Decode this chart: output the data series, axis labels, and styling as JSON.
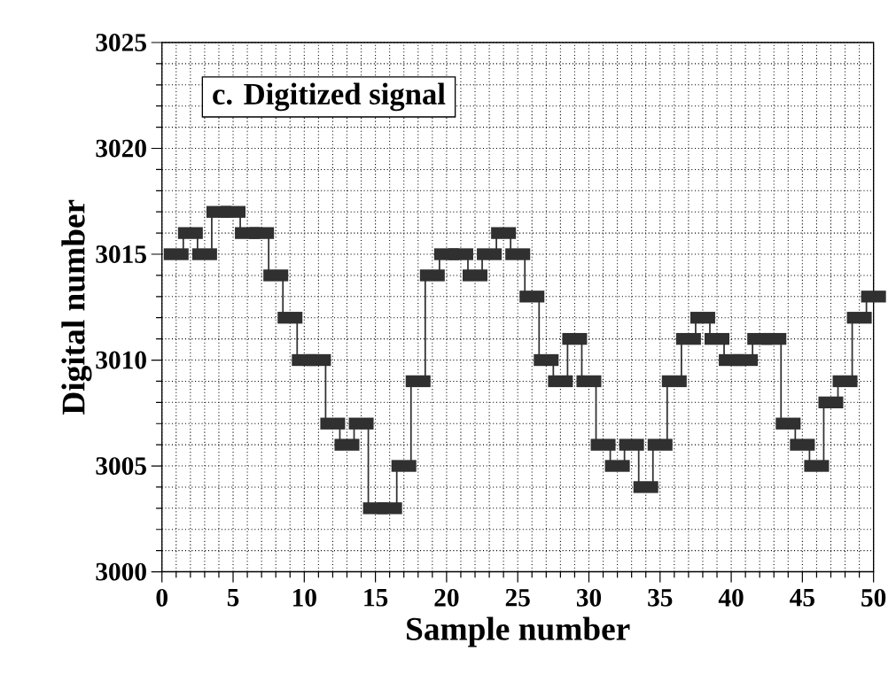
{
  "chart_data": {
    "type": "step",
    "title": "c. Digitized signal",
    "xlabel": "Sample number",
    "ylabel": "Digital number",
    "x": [
      1,
      2,
      3,
      4,
      5,
      6,
      7,
      8,
      9,
      10,
      11,
      12,
      13,
      14,
      15,
      16,
      17,
      18,
      19,
      20,
      21,
      22,
      23,
      24,
      25,
      26,
      27,
      28,
      29,
      30,
      31,
      32,
      33,
      34,
      35,
      36,
      37,
      38,
      39,
      40,
      41,
      42,
      43,
      44,
      45,
      46,
      47,
      48,
      49,
      50
    ],
    "values": [
      3015,
      3016,
      3015,
      3017,
      3017,
      3016,
      3016,
      3014,
      3012,
      3010,
      3010,
      3007,
      3006,
      3007,
      3003,
      3003,
      3005,
      3009,
      3014,
      3015,
      3015,
      3014,
      3015,
      3016,
      3015,
      3013,
      3010,
      3009,
      3011,
      3009,
      3006,
      3005,
      3006,
      3004,
      3006,
      3009,
      3011,
      3012,
      3011,
      3010,
      3010,
      3011,
      3011,
      3007,
      3006,
      3005,
      3008,
      3009,
      3012,
      3013
    ],
    "color": "#303030",
    "marker": "square",
    "grid": true,
    "xlim": [
      0,
      50
    ],
    "ylim": [
      3000,
      3025
    ],
    "xticks": [
      0,
      {
        "value": 1,
        "label": null
      },
      {
        "value": 2,
        "label": null
      },
      {
        "value": 3,
        "label": null
      },
      {
        "value": 4,
        "label": null
      },
      5,
      {
        "value": 6,
        "label": null
      },
      {
        "value": 7,
        "label": null
      },
      {
        "value": 8,
        "label": null
      },
      {
        "value": 9,
        "label": null
      },
      10,
      {
        "value": 11,
        "label": null
      },
      {
        "value": 12,
        "label": null
      },
      {
        "value": 13,
        "label": null
      },
      {
        "value": 14,
        "label": null
      },
      15,
      {
        "value": 16,
        "label": null
      },
      {
        "value": 17,
        "label": null
      },
      {
        "value": 18,
        "label": null
      },
      {
        "value": 19,
        "label": null
      },
      20,
      {
        "value": 21,
        "label": null
      },
      {
        "value": 22,
        "label": null
      },
      {
        "value": 23,
        "label": null
      },
      {
        "value": 24,
        "label": null
      },
      25,
      {
        "value": 26,
        "label": null
      },
      {
        "value": 27,
        "label": null
      },
      {
        "value": 28,
        "label": null
      },
      {
        "value": 29,
        "label": null
      },
      30,
      {
        "value": 31,
        "label": null
      },
      {
        "value": 32,
        "label": null
      },
      {
        "value": 33,
        "label": null
      },
      {
        "value": 34,
        "label": null
      },
      35,
      {
        "value": 36,
        "label": null
      },
      {
        "value": 37,
        "label": null
      },
      {
        "value": 38,
        "label": null
      },
      {
        "value": 39,
        "label": null
      },
      40,
      {
        "value": 41,
        "label": null
      },
      {
        "value": 42,
        "label": null
      },
      {
        "value": 43,
        "label": null
      },
      {
        "value": 44,
        "label": null
      },
      45,
      {
        "value": 46,
        "label": null
      },
      {
        "value": 47,
        "label": null
      },
      {
        "value": 48,
        "label": null
      },
      {
        "value": 49,
        "label": null
      },
      50
    ],
    "yticks": [
      3000,
      {
        "value": 3001,
        "label": null
      },
      {
        "value": 3002,
        "label": null
      },
      {
        "value": 3003,
        "label": null
      },
      {
        "value": 3004,
        "label": null
      },
      3005,
      {
        "value": 3006,
        "label": null
      },
      {
        "value": 3007,
        "label": null
      },
      {
        "value": 3008,
        "label": null
      },
      {
        "value": 3009,
        "label": null
      },
      3010,
      {
        "value": 3011,
        "label": null
      },
      {
        "value": 3012,
        "label": null
      },
      {
        "value": 3013,
        "label": null
      },
      {
        "value": 3014,
        "label": null
      },
      3015,
      {
        "value": 3016,
        "label": null
      },
      {
        "value": 3017,
        "label": null
      },
      {
        "value": 3018,
        "label": null
      },
      {
        "value": 3019,
        "label": null
      },
      3020,
      {
        "value": 3021,
        "label": null
      },
      {
        "value": 3022,
        "label": null
      },
      {
        "value": 3023,
        "label": null
      },
      {
        "value": 3024,
        "label": null
      },
      3025
    ]
  }
}
